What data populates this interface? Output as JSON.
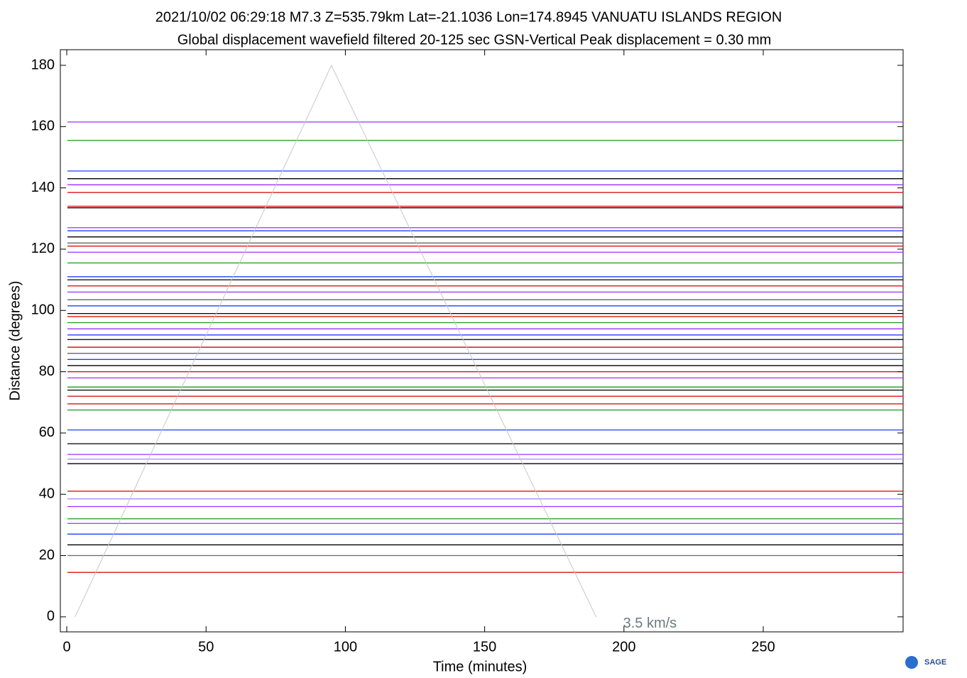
{
  "chart_data": {
    "type": "record-section",
    "title": "2021/10/02  06:29:18  M7.3  Z=535.79km  Lat=-21.1036 Lon=174.8945  VANUATU ISLANDS REGION",
    "subtitle": "Global displacement wavefield     filtered 20-125 sec     GSN-Vertical     Peak displacement = 0.30 mm",
    "x_label": "Time (minutes)",
    "y_label": "Distance (degrees)",
    "xlim": [
      -2.3,
      300.2
    ],
    "ylim": [
      -4.9,
      185.1
    ],
    "xticks": [
      0,
      50,
      100,
      150,
      200,
      250
    ],
    "yticks": [
      0,
      20,
      40,
      60,
      80,
      100,
      120,
      140,
      160,
      180
    ],
    "velocity_line": {
      "label": "3.5 km/s",
      "x": [
        3,
        95,
        190
      ],
      "y": [
        0,
        180,
        0
      ],
      "color": "#c8c8c8"
    },
    "traces": [
      {
        "distance": 161.5,
        "color": "#9b30ff"
      },
      {
        "distance": 155.5,
        "color": "#1a9a1a"
      },
      {
        "distance": 145.5,
        "color": "#1f3fff"
      },
      {
        "distance": 143,
        "color": "#000000"
      },
      {
        "distance": 141,
        "color": "#9b30ff"
      },
      {
        "distance": 138.5,
        "color": "#d40000"
      },
      {
        "distance": 134,
        "color": "#d40000"
      },
      {
        "distance": 133.5,
        "color": "#000000"
      },
      {
        "distance": 127,
        "color": "#9b30ff"
      },
      {
        "distance": 126,
        "color": "#1f3fff"
      },
      {
        "distance": 124,
        "color": "#000000"
      },
      {
        "distance": 122,
        "color": "#666666"
      },
      {
        "distance": 121,
        "color": "#d40000"
      },
      {
        "distance": 119,
        "color": "#9b30ff"
      },
      {
        "distance": 115.5,
        "color": "#1a9a1a"
      },
      {
        "distance": 111,
        "color": "#1f3fff"
      },
      {
        "distance": 110,
        "color": "#000000"
      },
      {
        "distance": 108,
        "color": "#d40000"
      },
      {
        "distance": 106,
        "color": "#9b30ff"
      },
      {
        "distance": 103.5,
        "color": "#666666"
      },
      {
        "distance": 101.5,
        "color": "#1f3fff"
      },
      {
        "distance": 99,
        "color": "#000000"
      },
      {
        "distance": 98,
        "color": "#d40000"
      },
      {
        "distance": 96,
        "color": "#1a9a1a"
      },
      {
        "distance": 94,
        "color": "#9b30ff"
      },
      {
        "distance": 92,
        "color": "#1f3fff"
      },
      {
        "distance": 90.5,
        "color": "#000000"
      },
      {
        "distance": 88,
        "color": "#d40000"
      },
      {
        "distance": 86,
        "color": "#666666"
      },
      {
        "distance": 84,
        "color": "#1f3fff"
      },
      {
        "distance": 82,
        "color": "#000000"
      },
      {
        "distance": 80,
        "color": "#d40000"
      },
      {
        "distance": 78,
        "color": "#9b30ff"
      },
      {
        "distance": 75,
        "color": "#1a9a1a"
      },
      {
        "distance": 74,
        "color": "#000000"
      },
      {
        "distance": 72,
        "color": "#d40000"
      },
      {
        "distance": 69.5,
        "color": "#d40000"
      },
      {
        "distance": 67.5,
        "color": "#1a9a1a"
      },
      {
        "distance": 61,
        "color": "#1f3fff"
      },
      {
        "distance": 56.5,
        "color": "#000000"
      },
      {
        "distance": 53,
        "color": "#9b30ff"
      },
      {
        "distance": 51.5,
        "color": "#a58cff"
      },
      {
        "distance": 50,
        "color": "#000000"
      },
      {
        "distance": 41,
        "color": "#d40000"
      },
      {
        "distance": 38.5,
        "color": "#a58cff"
      },
      {
        "distance": 36,
        "color": "#9b30ff"
      },
      {
        "distance": 32,
        "color": "#1a9a1a"
      },
      {
        "distance": 30.5,
        "color": "#9b30ff"
      },
      {
        "distance": 27,
        "color": "#1f3fff"
      },
      {
        "distance": 23.5,
        "color": "#000000"
      },
      {
        "distance": 20,
        "color": "#666666"
      },
      {
        "distance": 14.5,
        "color": "#d40000"
      }
    ],
    "logo": "SAGE"
  }
}
